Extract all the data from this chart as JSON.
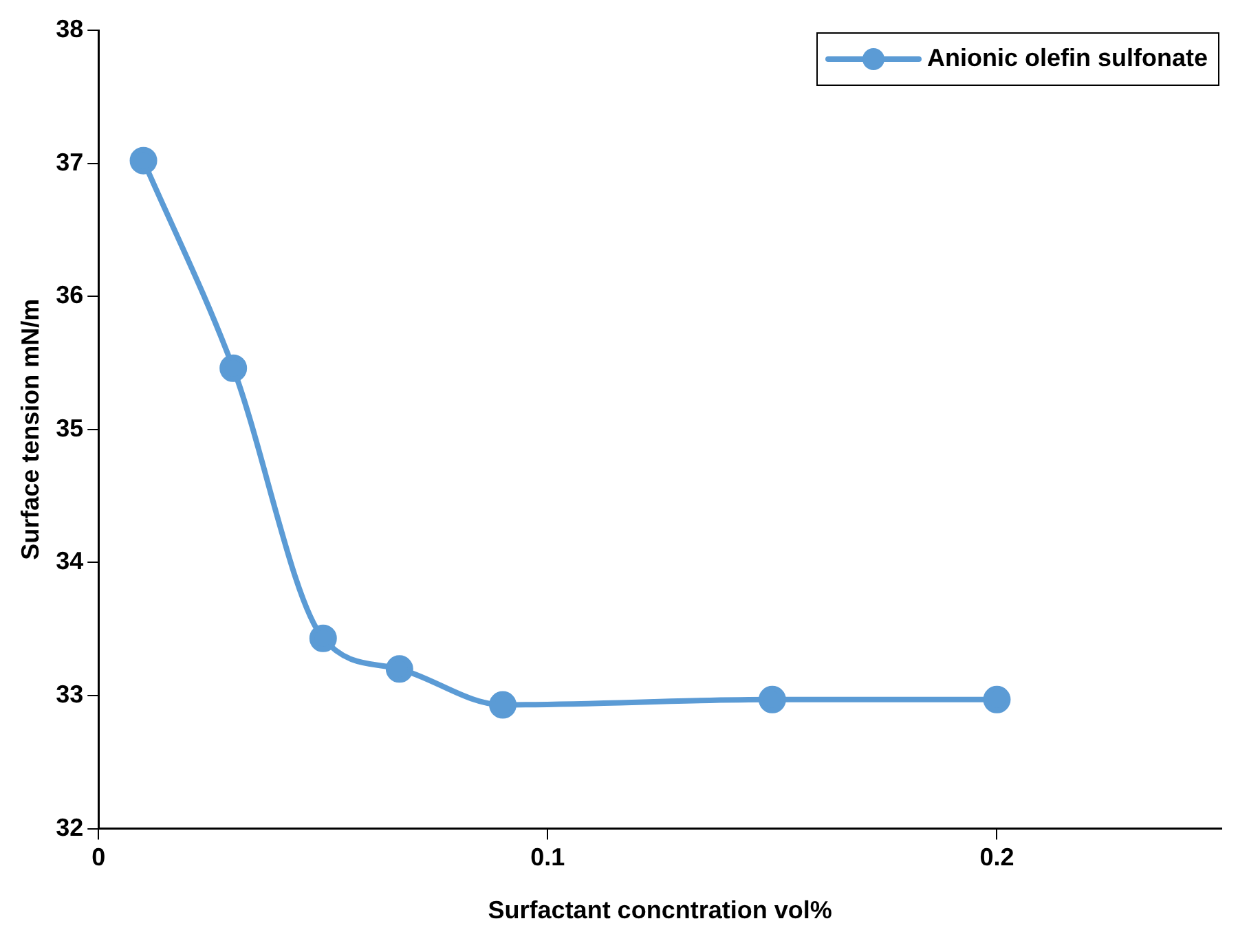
{
  "chart_data": {
    "type": "line",
    "xlabel": "Surfactant concntration vol%",
    "ylabel": "Surface tension mN/m",
    "x": [
      0.01,
      0.03,
      0.05,
      0.067,
      0.09,
      0.15,
      0.2
    ],
    "series": [
      {
        "name": "Anionic olefin sulfonate",
        "color": "#5b9bd5",
        "values": [
          37.02,
          35.46,
          33.43,
          33.2,
          32.93,
          32.97,
          32.97
        ]
      }
    ],
    "xlim": [
      0,
      0.25
    ],
    "xticks": [
      0,
      0.1,
      0.2
    ],
    "ylim": [
      32,
      38
    ],
    "yticks": [
      32,
      33,
      34,
      35,
      36,
      37,
      38
    ],
    "grid": false,
    "legend": "top right",
    "marker": "circle",
    "line_style": "solid"
  }
}
